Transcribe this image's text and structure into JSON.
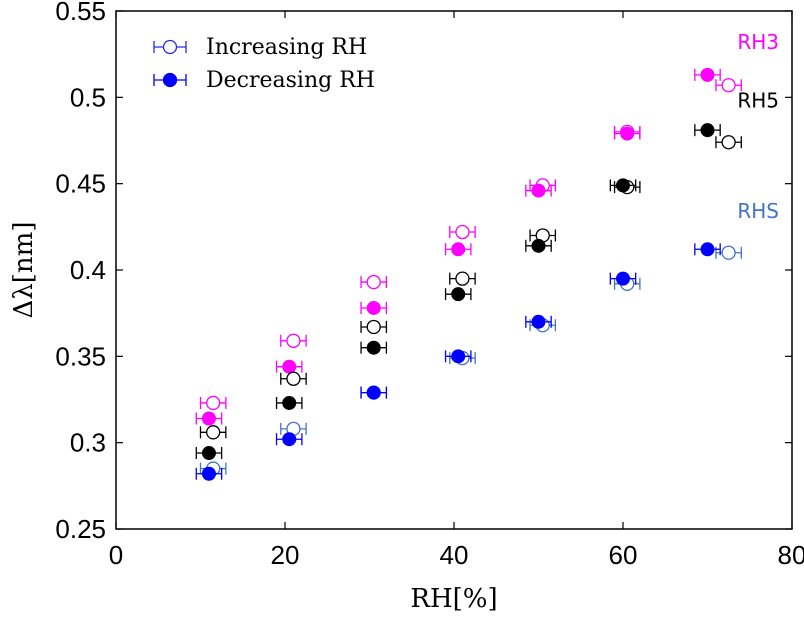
{
  "chart_data": {
    "type": "scatter",
    "xlabel": "RH[%]",
    "ylabel": "Δλ[nm]",
    "xlim": [
      0,
      80
    ],
    "ylim": [
      0.25,
      0.55
    ],
    "xticks": [
      0,
      20,
      40,
      60,
      80
    ],
    "xtick_labels": [
      "0",
      "20",
      "40",
      "60",
      "80"
    ],
    "yticks": [
      0.25,
      0.3,
      0.35,
      0.4,
      0.45,
      0.5,
      0.55
    ],
    "ytick_labels": [
      "0.25",
      "0.3",
      "0.35",
      "0.4",
      "0.45",
      "0.5",
      "0.55"
    ],
    "grid": false,
    "legend": {
      "position": "top-left",
      "entries": [
        {
          "label": "Increasing RH",
          "marker": "open-circle",
          "color": "#2929e6"
        },
        {
          "label": "Decreasing RH",
          "marker": "filled-circle",
          "color": "#0000ff"
        }
      ]
    },
    "series": [
      {
        "name": "RH3",
        "color": "#ff00ff",
        "increasing": {
          "x": [
            11.5,
            21,
            30.5,
            41,
            50.5,
            60.5,
            72.5
          ],
          "y": [
            0.323,
            0.359,
            0.393,
            0.422,
            0.449,
            0.48,
            0.507
          ],
          "xerr": 1.5
        },
        "decreasing": {
          "x": [
            11,
            20.5,
            30.5,
            40.5,
            50,
            60.5,
            70
          ],
          "y": [
            0.314,
            0.344,
            0.378,
            0.412,
            0.446,
            0.479,
            0.513
          ],
          "xerr": 1.5
        }
      },
      {
        "name": "RH5",
        "color": "#000000",
        "increasing": {
          "x": [
            11.5,
            21,
            30.5,
            41,
            50.5,
            60.5,
            72.5
          ],
          "y": [
            0.306,
            0.337,
            0.367,
            0.395,
            0.42,
            0.448,
            0.474
          ],
          "xerr": 1.5
        },
        "decreasing": {
          "x": [
            11,
            20.5,
            30.5,
            40.5,
            50,
            60,
            70
          ],
          "y": [
            0.294,
            0.323,
            0.355,
            0.386,
            0.414,
            0.449,
            0.481
          ],
          "xerr": 1.5
        }
      },
      {
        "name": "RHS",
        "color": "#4472c4",
        "increasing": {
          "x": [
            11.5,
            21,
            30.5,
            41,
            50.5,
            60.5,
            72.5
          ],
          "y": [
            0.285,
            0.308,
            0.329,
            0.349,
            0.368,
            0.392,
            0.41
          ],
          "xerr": 1.5
        },
        "decreasing": {
          "x": [
            11,
            20.5,
            30.5,
            40.5,
            50,
            60,
            70
          ],
          "y": [
            0.282,
            0.302,
            0.329,
            0.35,
            0.37,
            0.395,
            0.412
          ],
          "xerr": 1.5
        },
        "marker_color": "#0000ff"
      }
    ],
    "annotations": [
      {
        "text": "RH3",
        "color": "#ff00ff",
        "x": 76,
        "y": 0.528
      },
      {
        "text": "RH5",
        "color": "#000000",
        "x": 76,
        "y": 0.494
      },
      {
        "text": "RHS",
        "color": "#4472c4",
        "x": 76,
        "y": 0.43
      }
    ]
  }
}
